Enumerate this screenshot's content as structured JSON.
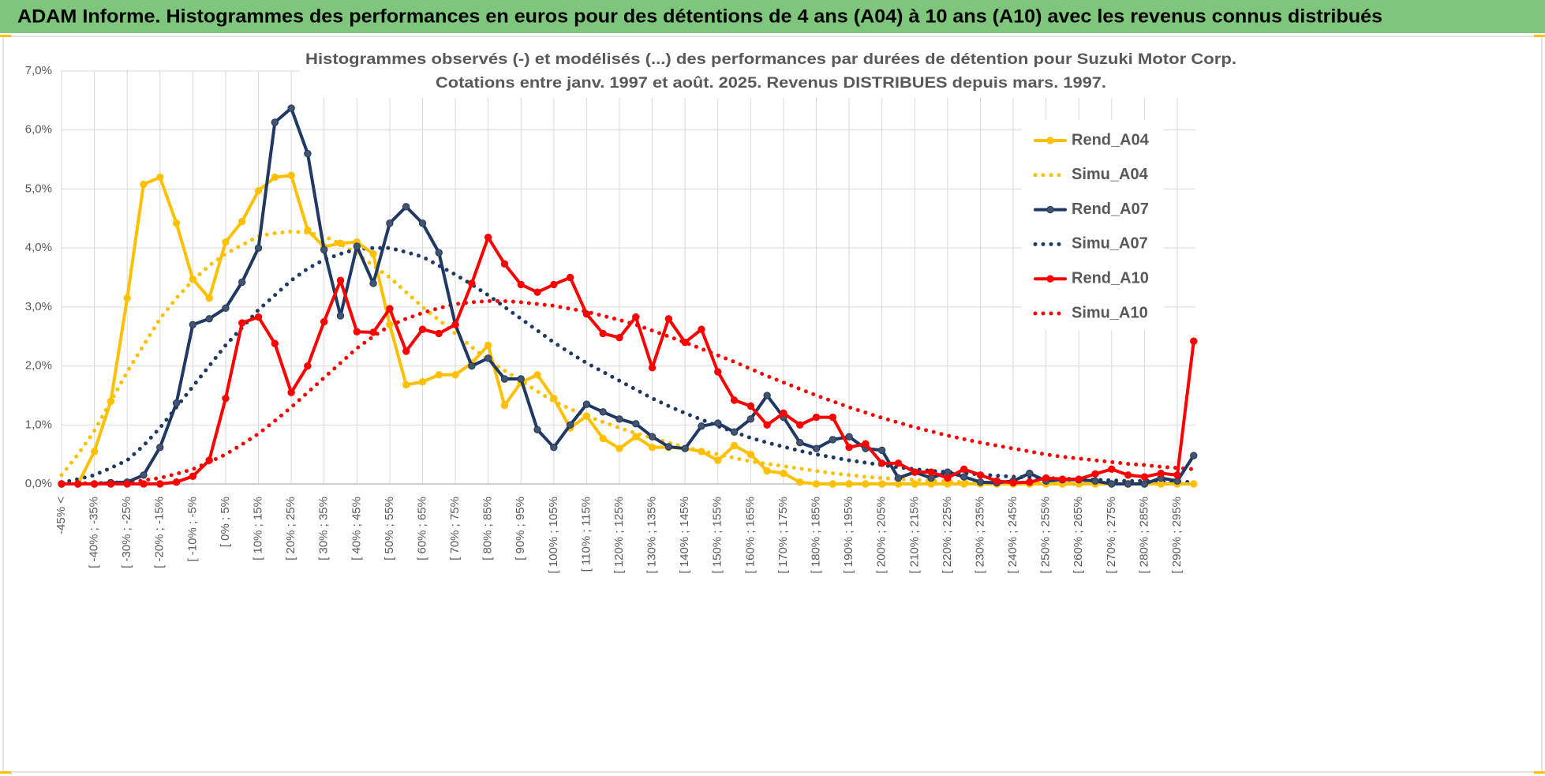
{
  "header": {
    "title": "ADAM Informe. Histogrammes des performances en euros pour des détentions de 4 ans (A04) à 10 ans (A10) avec les revenus connus distribués"
  },
  "chart_data": {
    "type": "line",
    "title": "Histogrammes observés (-) et modélisés (...) des performances par durées de détention pour Suzuki Motor Corp.",
    "subtitle": "Cotations entre janv. 1997 et août. 2025. Revenus DISTRIBUES depuis mars. 1997.",
    "categories": [
      "-45% <",
      null,
      "[ -40% ; -35%",
      null,
      "[ -30% ; -25%",
      null,
      "[ -20% ; -15%",
      null,
      "[ -10% ; -5%",
      null,
      "[ 0% ; 5%",
      null,
      "[ 10% ; 15%",
      null,
      "[ 20% ; 25%",
      null,
      "[ 30% ; 35%",
      null,
      "[ 40% ; 45%",
      null,
      "[ 50% ; 55%",
      null,
      "[ 60% ; 65%",
      null,
      "[ 70% ; 75%",
      null,
      "[ 80% ; 85%",
      null,
      "[ 90% ; 95%",
      null,
      "[ 100% ; 105%",
      null,
      "[ 110% ; 115%",
      null,
      "[ 120% ; 125%",
      null,
      "[ 130% ; 135%",
      null,
      "[ 140% ; 145%",
      null,
      "[ 150% ; 155%",
      null,
      "[ 160% ; 165%",
      null,
      "[ 170% ; 175%",
      null,
      "[ 180% ; 185%",
      null,
      "[ 190% ; 195%",
      null,
      "[ 200% ; 205%",
      null,
      "[ 210% ; 215%",
      null,
      "[ 220% ; 225%",
      null,
      "[ 230% ; 235%",
      null,
      "[ 240% ; 245%",
      null,
      "[ 250% ; 255%",
      null,
      "[ 260% ; 265%",
      null,
      "[ 270% ; 275%",
      null,
      "[ 280% ; 285%",
      null,
      "[ 290% ; 295%",
      null
    ],
    "ylim": [
      0,
      7
    ],
    "yticks": [
      {
        "value": 0,
        "label": "0,0%"
      },
      {
        "value": 1,
        "label": "1,0%"
      },
      {
        "value": 2,
        "label": "2,0%"
      },
      {
        "value": 3,
        "label": "3,0%"
      },
      {
        "value": 4,
        "label": "4,0%"
      },
      {
        "value": 5,
        "label": "5,0%"
      },
      {
        "value": 6,
        "label": "6,0%"
      },
      {
        "value": 7,
        "label": "7,0%"
      }
    ],
    "grid": true,
    "legend": "right",
    "series": [
      {
        "name": "Rend_A04",
        "color": "#ffc000",
        "style": "solid",
        "markers": true,
        "values": [
          0,
          0,
          0.55,
          1.4,
          3.15,
          5.08,
          5.2,
          4.42,
          3.47,
          3.15,
          4.1,
          4.45,
          4.97,
          5.2,
          5.23,
          4.3,
          4.02,
          4.08,
          4.1,
          3.9,
          2.7,
          1.68,
          1.73,
          1.85,
          1.85,
          2.05,
          2.35,
          1.33,
          1.72,
          1.85,
          1.45,
          0.95,
          1.15,
          0.77,
          0.6,
          0.8,
          0.62,
          0.62,
          0.6,
          0.55,
          0.4,
          0.65,
          0.5,
          0.22,
          0.18,
          0.03,
          0,
          0,
          0,
          0,
          0,
          0,
          0,
          0,
          0,
          0,
          0,
          0,
          0,
          0,
          0,
          0,
          0,
          0,
          0,
          0,
          0,
          0,
          0,
          0
        ]
      },
      {
        "name": "Simu_A04",
        "color": "#ffc000",
        "style": "dotted",
        "markers": false,
        "values": [
          0.15,
          0.5,
          0.9,
          1.4,
          1.9,
          2.35,
          2.8,
          3.15,
          3.45,
          3.7,
          3.9,
          4.05,
          4.2,
          4.25,
          4.28,
          4.26,
          4.2,
          4.07,
          3.9,
          3.7,
          3.5,
          3.25,
          3.0,
          2.78,
          2.55,
          2.32,
          2.1,
          1.92,
          1.75,
          1.57,
          1.4,
          1.27,
          1.15,
          1.05,
          0.95,
          0.86,
          0.78,
          0.7,
          0.62,
          0.56,
          0.5,
          0.44,
          0.38,
          0.34,
          0.3,
          0.26,
          0.22,
          0.18,
          0.15,
          0.12,
          0.1,
          0.08,
          0.07,
          0.05,
          0.04,
          0.03,
          0.03,
          0.02,
          0.02,
          0.02,
          0.02,
          0.02,
          0.02,
          0.02,
          0.02,
          0.02,
          0.02,
          0.02,
          0.02,
          0.02
        ]
      },
      {
        "name": "Rend_A07",
        "color": "#1f3864",
        "style": "solid",
        "markers": true,
        "values": [
          0,
          0,
          0,
          0.02,
          0.03,
          0.15,
          0.62,
          1.37,
          2.7,
          2.8,
          2.98,
          3.42,
          4.0,
          6.13,
          6.37,
          5.6,
          3.97,
          2.85,
          4.03,
          3.4,
          4.42,
          4.7,
          4.42,
          3.92,
          2.7,
          2.0,
          2.13,
          1.78,
          1.78,
          0.92,
          0.62,
          1.0,
          1.35,
          1.22,
          1.1,
          1.02,
          0.8,
          0.63,
          0.6,
          0.98,
          1.03,
          0.88,
          1.1,
          1.5,
          1.13,
          0.7,
          0.6,
          0.75,
          0.8,
          0.6,
          0.57,
          0.1,
          0.2,
          0.1,
          0.2,
          0.12,
          0.03,
          0.02,
          0.05,
          0.18,
          0.05,
          0.07,
          0.07,
          0.05,
          0,
          0,
          0,
          0.1,
          0.05,
          0.48
        ]
      },
      {
        "name": "Simu_A07",
        "color": "#1f3864",
        "style": "dotted",
        "markers": false,
        "values": [
          0.02,
          0.08,
          0.15,
          0.27,
          0.4,
          0.65,
          0.95,
          1.3,
          1.65,
          2.0,
          2.35,
          2.65,
          2.95,
          3.2,
          3.45,
          3.65,
          3.8,
          3.9,
          3.98,
          4.0,
          4.0,
          3.93,
          3.85,
          3.7,
          3.55,
          3.38,
          3.2,
          3.0,
          2.8,
          2.6,
          2.4,
          2.22,
          2.05,
          1.9,
          1.75,
          1.6,
          1.45,
          1.32,
          1.2,
          1.09,
          0.98,
          0.88,
          0.78,
          0.7,
          0.63,
          0.56,
          0.5,
          0.45,
          0.4,
          0.36,
          0.32,
          0.28,
          0.25,
          0.22,
          0.2,
          0.18,
          0.16,
          0.14,
          0.12,
          0.11,
          0.1,
          0.09,
          0.08,
          0.07,
          0.06,
          0.05,
          0.05,
          0.04,
          0.04,
          0.03
        ]
      },
      {
        "name": "Rend_A10",
        "color": "#ff0000",
        "style": "solid",
        "markers": true,
        "values": [
          0,
          0,
          0,
          0,
          0,
          0,
          0,
          0.03,
          0.13,
          0.4,
          1.45,
          2.73,
          2.83,
          2.38,
          1.55,
          2.0,
          2.75,
          3.45,
          2.58,
          2.57,
          2.97,
          2.25,
          2.62,
          2.55,
          2.7,
          3.4,
          4.18,
          3.73,
          3.38,
          3.25,
          3.38,
          3.5,
          2.88,
          2.55,
          2.48,
          2.83,
          1.97,
          2.8,
          2.4,
          2.62,
          1.9,
          1.42,
          1.32,
          1.0,
          1.2,
          1.0,
          1.13,
          1.13,
          0.62,
          0.68,
          0.35,
          0.35,
          0.2,
          0.2,
          0.1,
          0.25,
          0.15,
          0.05,
          0.02,
          0.03,
          0.1,
          0.08,
          0.08,
          0.17,
          0.25,
          0.15,
          0.12,
          0.18,
          0.15,
          2.42
        ]
      },
      {
        "name": "Simu_A10",
        "color": "#ff0000",
        "style": "dotted",
        "markers": false,
        "values": [
          0,
          0.01,
          0.01,
          0.02,
          0.03,
          0.06,
          0.1,
          0.17,
          0.25,
          0.37,
          0.5,
          0.67,
          0.85,
          1.07,
          1.3,
          1.55,
          1.8,
          2.05,
          2.3,
          2.5,
          2.68,
          2.8,
          2.9,
          2.98,
          3.05,
          3.08,
          3.1,
          3.1,
          3.08,
          3.05,
          3.02,
          2.97,
          2.92,
          2.85,
          2.78,
          2.7,
          2.6,
          2.5,
          2.4,
          2.29,
          2.18,
          2.07,
          1.95,
          1.83,
          1.72,
          1.61,
          1.5,
          1.4,
          1.3,
          1.21,
          1.12,
          1.04,
          0.96,
          0.89,
          0.82,
          0.76,
          0.7,
          0.65,
          0.6,
          0.55,
          0.5,
          0.46,
          0.43,
          0.4,
          0.37,
          0.34,
          0.32,
          0.29,
          0.27,
          0.25
        ]
      }
    ]
  }
}
